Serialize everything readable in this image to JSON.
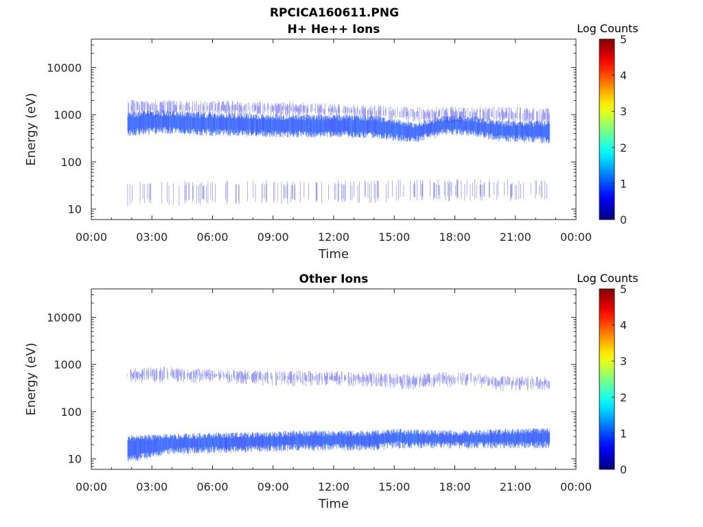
{
  "figure_title": "RPCICA160611.PNG",
  "chart_data": [
    {
      "type": "heatmap",
      "title": "H+ He++ Ions",
      "xlabel": "Time",
      "ylabel": "Energy (eV)",
      "yscale": "log",
      "xlim": [
        "00:00",
        "24:00"
      ],
      "ylim": [
        6,
        40000
      ],
      "x_tick_labels": [
        "00:00",
        "03:00",
        "06:00",
        "09:00",
        "12:00",
        "15:00",
        "18:00",
        "21:00",
        "00:00"
      ],
      "y_tick_values": [
        10,
        100,
        1000,
        10000
      ],
      "y_tick_labels": [
        "10",
        "100",
        "1000",
        "10000"
      ],
      "colorbar": {
        "label": "Log Counts",
        "min": 0,
        "max": 5,
        "ticks": [
          "0",
          "1",
          "2",
          "3",
          "4",
          "5"
        ],
        "colormap": "jet"
      },
      "data_span_hours": [
        1.8,
        22.7
      ],
      "bands": [
        {
          "kind": "main",
          "log_counts": 0.9,
          "profile": [
            [
              1.8,
              420,
              1000
            ],
            [
              3.5,
              480,
              1100
            ],
            [
              5.0,
              440,
              1000
            ],
            [
              7.0,
              420,
              950
            ],
            [
              9.0,
              400,
              900
            ],
            [
              12.0,
              390,
              880
            ],
            [
              14.0,
              380,
              850
            ],
            [
              15.2,
              330,
              700
            ],
            [
              16.0,
              300,
              600
            ],
            [
              17.5,
              450,
              850
            ],
            [
              19.0,
              420,
              820
            ],
            [
              19.8,
              350,
              700
            ],
            [
              20.5,
              320,
              650
            ],
            [
              22.7,
              300,
              650
            ]
          ]
        },
        {
          "kind": "upper",
          "log_counts": 0.5,
          "profile": [
            [
              1.8,
              1100,
              1800
            ],
            [
              9.0,
              1100,
              1700
            ],
            [
              12.0,
              1000,
              1500
            ],
            [
              16.0,
              800,
              1300
            ],
            [
              20.0,
              800,
              1300
            ],
            [
              22.7,
              700,
              1200
            ]
          ]
        },
        {
          "kind": "low",
          "log_counts": 0.4,
          "profile": [
            [
              1.8,
              14,
              35
            ],
            [
              22.7,
              18,
              38
            ]
          ]
        }
      ]
    },
    {
      "type": "heatmap",
      "title": "Other Ions",
      "xlabel": "Time",
      "ylabel": "Energy (eV)",
      "yscale": "log",
      "xlim": [
        "00:00",
        "24:00"
      ],
      "ylim": [
        6,
        40000
      ],
      "x_tick_labels": [
        "00:00",
        "03:00",
        "06:00",
        "09:00",
        "12:00",
        "15:00",
        "18:00",
        "21:00",
        "00:00"
      ],
      "y_tick_values": [
        10,
        100,
        1000,
        10000
      ],
      "y_tick_labels": [
        "10",
        "100",
        "1000",
        "10000"
      ],
      "colorbar": {
        "label": "Log Counts",
        "min": 0,
        "max": 5,
        "ticks": [
          "0",
          "1",
          "2",
          "3",
          "4",
          "5"
        ],
        "colormap": "jet"
      },
      "data_span_hours": [
        1.8,
        22.7
      ],
      "bands": [
        {
          "kind": "main",
          "log_counts": 0.9,
          "profile": [
            [
              1.8,
              10,
              28
            ],
            [
              4.0,
              15,
              30
            ],
            [
              9.0,
              17,
              33
            ],
            [
              10.0,
              18,
              35
            ],
            [
              14.0,
              18,
              35
            ],
            [
              15.0,
              20,
              38
            ],
            [
              18.0,
              20,
              35
            ],
            [
              21.0,
              20,
              38
            ],
            [
              22.7,
              20,
              40
            ]
          ]
        },
        {
          "kind": "upper",
          "log_counts": 0.5,
          "profile": [
            [
              1.8,
              500,
              700
            ],
            [
              3.5,
              500,
              800
            ],
            [
              6.0,
              500,
              700
            ],
            [
              9.0,
              420,
              650
            ],
            [
              12.0,
              420,
              650
            ],
            [
              14.0,
              400,
              600
            ],
            [
              16.0,
              330,
              550
            ],
            [
              17.0,
              400,
              600
            ],
            [
              19.0,
              420,
              600
            ],
            [
              20.0,
              330,
              500
            ],
            [
              22.7,
              330,
              500
            ]
          ]
        }
      ]
    }
  ]
}
